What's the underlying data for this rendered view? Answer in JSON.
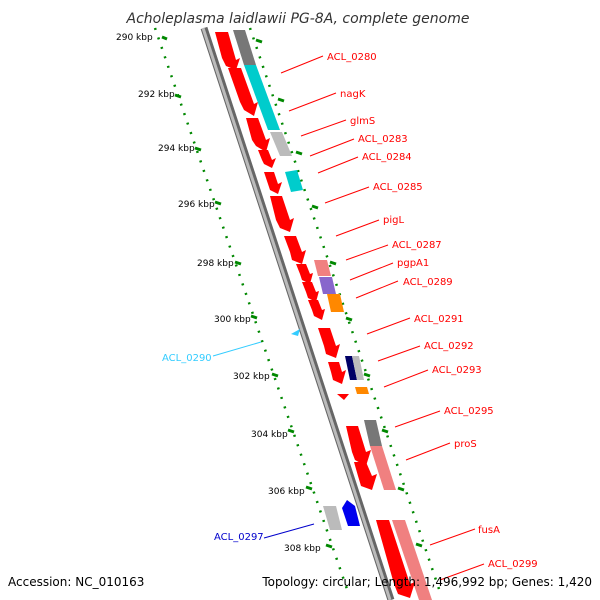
{
  "title": "Acholeplasma laidlawii PG-8A, complete genome",
  "footer": {
    "accession": "Accession: NC_010163",
    "topology": "Topology: circular; Length: 1,496,992 bp; Genes: 1,420"
  },
  "colors": {
    "forward_gene": "#ff0000",
    "forward_gene_light": "#f08080",
    "reverse_gene_label": "#33ccff",
    "reverse_gene_blue_label": "#0000cc",
    "cog_cyan": "#00cccc",
    "cog_gray": "#777777",
    "cog_light_gray": "#bbbbbb",
    "cog_purple": "#8866cc",
    "cog_orange": "#ff8800",
    "cog_navy": "#000066",
    "cog_blue": "#0000ee",
    "tick_green": "#008800",
    "backbone_gray": "#999999"
  },
  "kbp_ticks": [
    "290 kbp",
    "292 kbp",
    "294 kbp",
    "296 kbp",
    "298 kbp",
    "300 kbp",
    "302 kbp",
    "304 kbp",
    "306 kbp",
    "308 kbp"
  ],
  "right_labels": [
    "ACL_0280",
    "nagK",
    "glmS",
    "ACL_0283",
    "ACL_0284",
    "ACL_0285",
    "pigL",
    "ACL_0287",
    "pgpA1",
    "ACL_0289",
    "ACL_0291",
    "ACL_0292",
    "ACL_0293",
    "ACL_0295",
    "proS",
    "fusA",
    "ACL_0299"
  ],
  "left_labels": [
    "ACL_0290",
    "ACL_0297"
  ]
}
